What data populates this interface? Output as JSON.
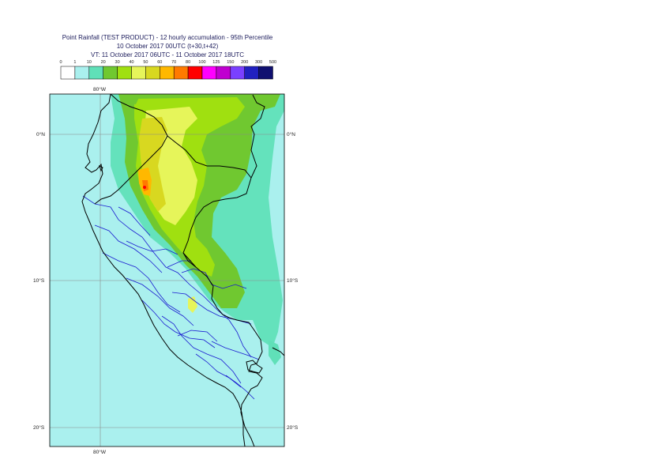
{
  "title": {
    "line1": "Point Rainfall (TEST PRODUCT) - 12 hourly accumulation - 95th Percentile",
    "line2": "10 October 2017 00UTC (t+30,t+42)",
    "line3": "VT: 11 October 2017 06UTC - 11 October 2017 18UTC"
  },
  "legend": {
    "ticks": [
      "0",
      "1",
      "10",
      "20",
      "30",
      "40",
      "50",
      "60",
      "70",
      "80",
      "100",
      "125",
      "150",
      "200",
      "300",
      "500"
    ],
    "colors": [
      "#ffffff",
      "#aaf0ee",
      "#60e0b8",
      "#70c830",
      "#a0e010",
      "#e6f55a",
      "#d8d820",
      "#ffb800",
      "#ff7a00",
      "#ff0000",
      "#ff00ff",
      "#c000d0",
      "#7a40ff",
      "#2020c0",
      "#101070"
    ]
  },
  "map": {
    "labels": {
      "lon_top": "80°W",
      "lon_bottom": "80°W",
      "lat_0_left": "0°N",
      "lat_0_right": "0°N",
      "lat_10_left": "10°S",
      "lat_10_right": "10°S",
      "lat_20_left": "20°S",
      "lat_20_right": "20°S"
    },
    "colors": {
      "ocean": "#aaf0ee",
      "coastline": "#000000",
      "admin_boundaries": "#1a1ad0",
      "gridline": "#8a8a8a"
    }
  }
}
